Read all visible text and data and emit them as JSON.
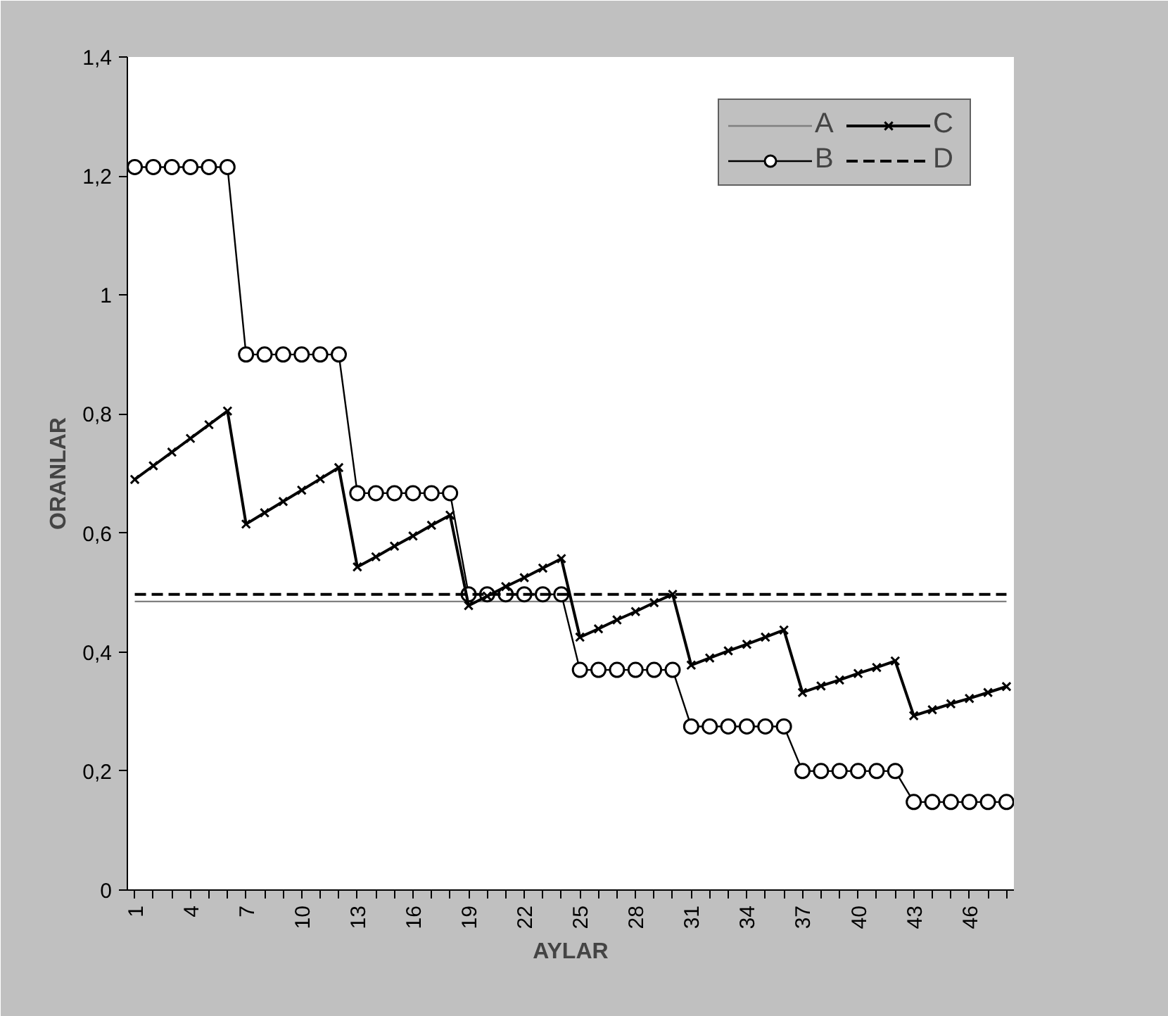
{
  "chart_data": {
    "type": "line",
    "xlabel": "AYLAR",
    "ylabel": "ORANLAR",
    "categories": [
      "1",
      null,
      null,
      "4",
      null,
      null,
      "7",
      null,
      null,
      "10",
      null,
      null,
      "13",
      null,
      null,
      "16",
      null,
      null,
      "19",
      null,
      null,
      "22",
      null,
      null,
      "25",
      null,
      null,
      "28",
      null,
      null,
      "31",
      null,
      null,
      "34",
      null,
      null,
      "37",
      null,
      null,
      "40",
      null,
      null,
      "43",
      null,
      null,
      "46",
      null,
      null
    ],
    "ylim": [
      0,
      1.4
    ],
    "yticks": [
      0,
      {
        "value": 0.2,
        "label": "0,2"
      },
      {
        "value": 0.4,
        "label": "0,4"
      },
      {
        "value": 0.6,
        "label": "0,6"
      },
      {
        "value": 0.8,
        "label": "0,8"
      },
      1,
      {
        "value": 1.2,
        "label": "1,2"
      },
      {
        "value": 1.4,
        "label": "1,4"
      }
    ],
    "grid": false,
    "legend": "top right",
    "series": [
      {
        "name": "A",
        "color": "#808080",
        "marker": "none",
        "line_style": "solid",
        "values": [
          0.485,
          0.485,
          0.485,
          0.485,
          0.485,
          0.485,
          0.485,
          0.485,
          0.485,
          0.485,
          0.485,
          0.485,
          0.485,
          0.485,
          0.485,
          0.485,
          0.485,
          0.485,
          0.485,
          0.485,
          0.485,
          0.485,
          0.485,
          0.485,
          0.485,
          0.485,
          0.485,
          0.485,
          0.485,
          0.485,
          0.485,
          0.485,
          0.485,
          0.485,
          0.485,
          0.485,
          0.485,
          0.485,
          0.485,
          0.485,
          0.485,
          0.485,
          0.485,
          0.485,
          0.485,
          0.485,
          0.485,
          0.485
        ]
      },
      {
        "name": "B",
        "color": "#000000",
        "marker": "circle",
        "line_style": "solid",
        "values": [
          1.215,
          1.215,
          1.215,
          1.215,
          1.215,
          1.215,
          0.9,
          0.9,
          0.9,
          0.9,
          0.9,
          0.9,
          0.667,
          0.667,
          0.667,
          0.667,
          0.667,
          0.667,
          0.497,
          0.497,
          0.497,
          0.497,
          0.497,
          0.497,
          0.37,
          0.37,
          0.37,
          0.37,
          0.37,
          0.37,
          0.275,
          0.275,
          0.275,
          0.275,
          0.275,
          0.275,
          0.2,
          0.2,
          0.2,
          0.2,
          0.2,
          0.2,
          0.148,
          0.148,
          0.148,
          0.148,
          0.148,
          0.148
        ]
      },
      {
        "name": "C",
        "color": "#000000",
        "marker": "cross",
        "line_style": "solid",
        "values": [
          0.69,
          0.713,
          0.736,
          0.759,
          0.782,
          0.805,
          0.615,
          0.634,
          0.653,
          0.672,
          0.691,
          0.71,
          0.543,
          0.56,
          0.578,
          0.595,
          0.613,
          0.63,
          0.478,
          0.494,
          0.51,
          0.525,
          0.541,
          0.557,
          0.425,
          0.439,
          0.454,
          0.468,
          0.483,
          0.497,
          0.378,
          0.39,
          0.402,
          0.413,
          0.425,
          0.437,
          0.332,
          0.343,
          0.353,
          0.364,
          0.374,
          0.385,
          0.293,
          0.303,
          0.313,
          0.322,
          0.332,
          0.342
        ]
      },
      {
        "name": "D",
        "color": "#000000",
        "marker": "none",
        "line_style": "dashed",
        "values": [
          0.497,
          0.497,
          0.497,
          0.497,
          0.497,
          0.497,
          0.497,
          0.497,
          0.497,
          0.497,
          0.497,
          0.497,
          0.497,
          0.497,
          0.497,
          0.497,
          0.497,
          0.497,
          0.497,
          0.497,
          0.497,
          0.497,
          0.497,
          0.497,
          0.497,
          0.497,
          0.497,
          0.497,
          0.497,
          0.497,
          0.497,
          0.497,
          0.497,
          0.497,
          0.497,
          0.497,
          0.497,
          0.497,
          0.497,
          0.497,
          0.497,
          0.497,
          0.497,
          0.497,
          0.497,
          0.497,
          0.497,
          0.497
        ]
      }
    ]
  }
}
